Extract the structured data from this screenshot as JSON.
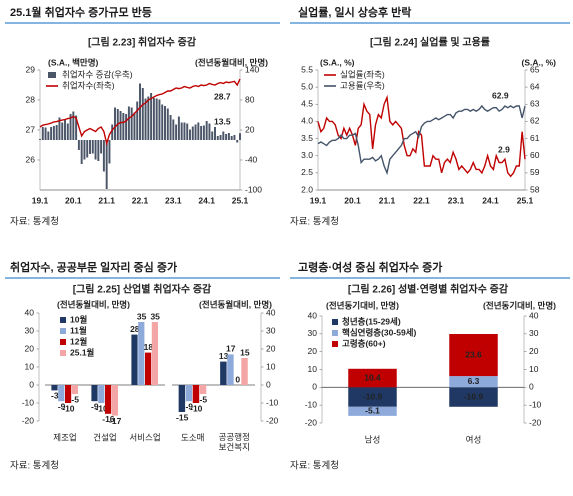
{
  "panels": [
    {
      "heading": "25.1월 취업자수 증가규모 반등",
      "caption": "[그림 2.23] 취업자수 증감",
      "source": "자료: 통계청"
    },
    {
      "heading": "실업률, 일시 상승후 반락",
      "caption": "[그림 2.24] 실업률 및 고용률",
      "source": "자료: 통계청"
    },
    {
      "heading": "취업자수, 공공부문 일자리 중심 증가",
      "caption": "[그림 2.25] 산업별 취업자수 증감",
      "source": "자료: 통계청"
    },
    {
      "heading": "고령층·여성 중심 취업자수 증가",
      "caption": "[그림 2.26] 성별·연령별 취업자수 증감",
      "source": "자료: 통계청"
    }
  ],
  "chart_data": [
    {
      "type": "combo",
      "y_label": "(S.A., 백만명)",
      "y2_label": "(전년동월대비, 만명)",
      "categories": [
        "19.1",
        null,
        null,
        null,
        null,
        null,
        null,
        null,
        null,
        null,
        null,
        null,
        "20.1",
        null,
        null,
        null,
        null,
        null,
        null,
        null,
        null,
        null,
        null,
        null,
        "21.1",
        null,
        null,
        null,
        null,
        null,
        null,
        null,
        null,
        null,
        null,
        null,
        "22.1",
        null,
        null,
        null,
        null,
        null,
        null,
        null,
        null,
        null,
        null,
        null,
        "23.1",
        null,
        null,
        null,
        null,
        null,
        null,
        null,
        null,
        null,
        null,
        null,
        "24.1",
        null,
        null,
        null,
        null,
        null,
        null,
        null,
        null,
        null,
        null,
        null,
        "25.1"
      ],
      "ylim": [
        25,
        29
      ],
      "yticks": [
        26,
        27,
        28,
        29
      ],
      "y2lim": [
        -100,
        140
      ],
      "y2ticks": [
        -100,
        -40,
        20,
        80,
        140
      ],
      "grid": false,
      "series": [
        {
          "name": "취업자수 증감(우축)",
          "type": "bar",
          "axis": "y2",
          "color": "#4a5568",
          "values": [
            1.9,
            26,
            25,
            17,
            26,
            28,
            30,
            45,
            35,
            42,
            33,
            52,
            57,
            49,
            -20,
            -48,
            -39,
            -35,
            -28,
            -27,
            -39,
            -42,
            -27,
            -63,
            -98,
            -47,
            31,
            65,
            62,
            58,
            54,
            52,
            67,
            65,
            55,
            77,
            113,
            104,
            83,
            87,
            94,
            84,
            83,
            81,
            71,
            68,
            63,
            50,
            41,
            31,
            47,
            35,
            35,
            33,
            21,
            27,
            31,
            35,
            28,
            29,
            38,
            33,
            17,
            26,
            8,
            10,
            17,
            12,
            14,
            8,
            10,
            -5,
            13.5
          ]
        },
        {
          "name": "취업자수(좌축)",
          "type": "line",
          "color": "#c00000",
          "values": [
            27.1,
            27.16,
            27.18,
            27.2,
            27.23,
            27.27,
            27.28,
            27.31,
            27.33,
            27.35,
            27.38,
            27.4,
            27.45,
            27.4,
            27.1,
            26.8,
            26.95,
            27.0,
            27.05,
            27.0,
            26.95,
            27.05,
            27.1,
            26.95,
            26.55,
            26.85,
            27.0,
            27.1,
            27.2,
            27.25,
            27.25,
            27.3,
            27.4,
            27.45,
            27.55,
            27.65,
            27.75,
            27.85,
            27.9,
            28.0,
            28.05,
            28.1,
            28.15,
            28.18,
            28.2,
            28.25,
            28.3,
            28.3,
            28.35,
            28.4,
            28.38,
            28.4,
            28.45,
            28.42,
            28.4,
            28.45,
            28.48,
            28.45,
            28.5,
            28.48,
            28.5,
            28.55,
            28.52,
            28.5,
            28.55,
            28.58,
            28.55,
            28.6,
            28.58,
            28.6,
            28.62,
            28.5,
            28.7
          ]
        }
      ],
      "annotations": [
        {
          "text": "28.7",
          "color": "#c00000"
        },
        {
          "text": "13.5",
          "color": "#4a5568"
        }
      ]
    },
    {
      "type": "line",
      "y_label": "(S.A., %)",
      "y2_label": "(S.A., %)",
      "categories": [
        "19.1",
        null,
        null,
        null,
        null,
        null,
        null,
        null,
        null,
        null,
        null,
        null,
        "20.1",
        null,
        null,
        null,
        null,
        null,
        null,
        null,
        null,
        null,
        null,
        null,
        "21.1",
        null,
        null,
        null,
        null,
        null,
        null,
        null,
        null,
        null,
        null,
        null,
        "22.1",
        null,
        null,
        null,
        null,
        null,
        null,
        null,
        null,
        null,
        null,
        null,
        "23.1",
        null,
        null,
        null,
        null,
        null,
        null,
        null,
        null,
        null,
        null,
        null,
        "24.1",
        null,
        null,
        null,
        null,
        null,
        null,
        null,
        null,
        null,
        null,
        null,
        "25.1"
      ],
      "ylim": [
        2,
        5.5
      ],
      "yticks": [
        {
          "value": 2,
          "label": "2.0"
        },
        2.5,
        {
          "value": 3,
          "label": "3.0"
        },
        3.5,
        {
          "value": 4,
          "label": "4.0"
        },
        4.5,
        {
          "value": 5,
          "label": "5.0"
        },
        5.5
      ],
      "y2lim": [
        58,
        65
      ],
      "y2ticks": [
        58,
        59,
        60,
        61,
        62,
        63,
        64,
        65
      ],
      "grid": false,
      "series": [
        {
          "name": "실업률(좌축)",
          "type": "line",
          "color": "#c00000",
          "values": [
            4.0,
            3.7,
            3.8,
            4.1,
            4.0,
            4.0,
            3.9,
            3.6,
            3.5,
            3.8,
            3.6,
            3.8,
            3.6,
            3.3,
            3.8,
            3.9,
            4.5,
            4.3,
            4.2,
            3.2,
            3.9,
            4.2,
            4.1,
            4.5,
            4.7,
            4.0,
            3.9,
            4.0,
            3.9,
            3.8,
            3.3,
            3.0,
            3.0,
            3.2,
            3.1,
            3.7,
            3.6,
            2.7,
            2.7,
            2.7,
            3.0,
            2.9,
            2.9,
            2.5,
            2.8,
            2.9,
            2.8,
            3.1,
            2.9,
            2.6,
            2.7,
            2.6,
            2.5,
            2.6,
            2.8,
            2.6,
            2.6,
            2.5,
            2.7,
            3.0,
            2.7,
            2.6,
            3.0,
            2.8,
            2.8,
            2.9,
            2.5,
            2.4,
            2.5,
            2.7,
            2.7,
            3.7,
            2.9
          ]
        },
        {
          "name": "고용률(우축)",
          "type": "line",
          "axis": "y2",
          "color": "#44546a",
          "values": [
            60.7,
            60.8,
            60.7,
            60.6,
            60.8,
            60.9,
            60.9,
            61.0,
            61.2,
            61.0,
            61.0,
            61.2,
            61.2,
            61.3,
            60.6,
            59.6,
            59.8,
            59.8,
            59.8,
            59.9,
            59.7,
            59.8,
            60.0,
            59.4,
            59.0,
            59.8,
            60.0,
            60.2,
            60.4,
            60.6,
            61.0,
            61.0,
            61.2,
            61.3,
            61.4,
            61.1,
            61.7,
            61.9,
            62.0,
            62.0,
            62.1,
            62.2,
            62.1,
            62.2,
            62.3,
            62.4,
            62.4,
            62.2,
            62.5,
            62.6,
            62.6,
            62.7,
            62.7,
            62.6,
            62.7,
            62.6,
            62.7,
            62.9,
            62.7,
            62.6,
            62.7,
            62.8,
            62.8,
            62.6,
            62.7,
            62.9,
            62.8,
            62.9,
            62.8,
            62.9,
            62.9,
            62.2,
            62.9
          ]
        }
      ],
      "annotations": [
        {
          "text": "62.9",
          "color": "#44546a"
        },
        {
          "text": "2.9",
          "color": "#c00000"
        }
      ]
    },
    {
      "type": "bar",
      "y_label": "(전년동월대비, 만명)",
      "yaxis_side": "left",
      "legend": true,
      "categories": [
        "제조업",
        "건설업",
        "서비스업"
      ],
      "ylim": [
        -20,
        40
      ],
      "yticks": [
        -20,
        -10,
        0,
        10,
        20,
        30,
        40
      ],
      "series": [
        {
          "name": "10월",
          "color": "#1f3864",
          "values": [
            -3,
            -9,
            28
          ]
        },
        {
          "name": "11월",
          "color": "#8eaadb",
          "values": [
            -9,
            -10,
            35
          ]
        },
        {
          "name": "12월",
          "color": "#c00000",
          "values": [
            -10,
            -16,
            18
          ]
        },
        {
          "name": "25.1월",
          "color": "#f4a6a6",
          "values": [
            -5,
            -17,
            35
          ]
        }
      ]
    },
    {
      "type": "bar",
      "y_label": "(전년동월대비, 만명)",
      "yaxis_side": "right",
      "legend": false,
      "categories": [
        "도소매",
        "공공행정\n보건복지"
      ],
      "ylim": [
        -20,
        40
      ],
      "yticks": [
        -20,
        -10,
        0,
        10,
        20,
        30,
        40
      ],
      "series": [
        {
          "name": "10월",
          "color": "#1f3864",
          "values": [
            -15,
            13
          ]
        },
        {
          "name": "11월",
          "color": "#8eaadb",
          "values": [
            -9,
            17
          ]
        },
        {
          "name": "12월",
          "color": "#c00000",
          "values": [
            -10,
            0
          ]
        },
        {
          "name": "25.1월",
          "color": "#f4a6a6",
          "values": [
            -5,
            15
          ]
        }
      ]
    },
    {
      "type": "stacked",
      "y_label": "(전년동기대비, 만명)",
      "y2_label": "(전년동기대비, 만명)",
      "categories": [
        "남성",
        "여성"
      ],
      "ylim": [
        -20,
        40
      ],
      "yticks": [
        -20,
        -10,
        0,
        10,
        20,
        30,
        40
      ],
      "y2lim": [
        -20,
        40
      ],
      "y2ticks": [
        -20,
        -10,
        0,
        10,
        20,
        30,
        40
      ],
      "series": [
        {
          "name": "청년층(15-29세)",
          "color": "#1f3864",
          "values": [
            -10.9,
            -10.9
          ]
        },
        {
          "name": "핵심연령층(30-59세)",
          "color": "#8eaadb",
          "values": [
            -5.1,
            6.3
          ]
        },
        {
          "name": "고령층(60+)",
          "color": "#c00000",
          "values": [
            10.4,
            23.6
          ]
        }
      ]
    }
  ]
}
